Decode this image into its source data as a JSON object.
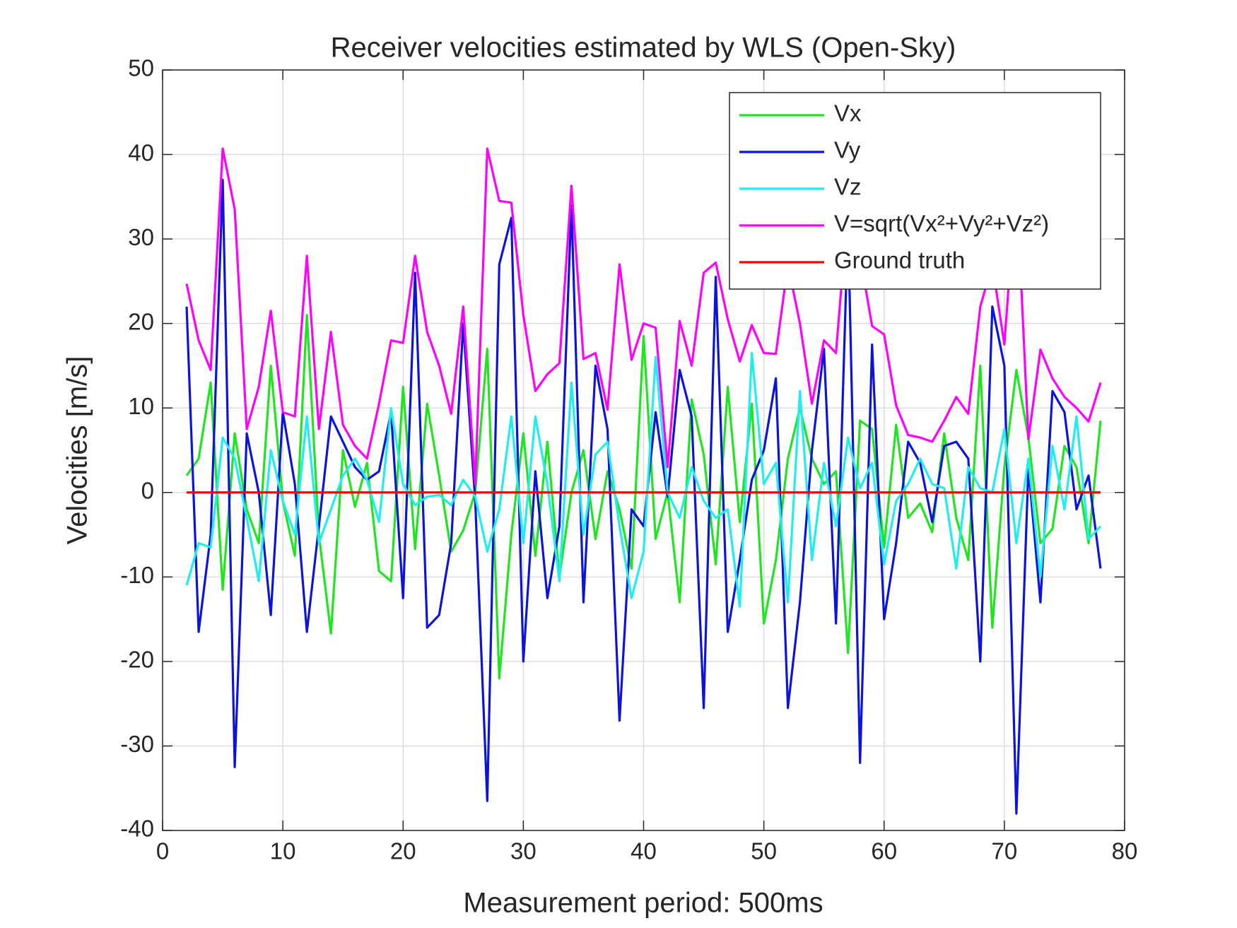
{
  "chart_data": {
    "type": "line",
    "title": "Receiver velocities estimated by WLS (Open-Sky)",
    "xlabel": "Measurement period: 500ms",
    "ylabel": "Velocities [m/s]",
    "x": [
      2,
      3,
      4,
      5,
      6,
      7,
      8,
      9,
      10,
      11,
      12,
      13,
      14,
      15,
      16,
      17,
      18,
      19,
      20,
      21,
      22,
      23,
      24,
      25,
      26,
      27,
      28,
      29,
      30,
      31,
      32,
      33,
      34,
      35,
      36,
      37,
      38,
      39,
      40,
      41,
      42,
      43,
      44,
      45,
      46,
      47,
      48,
      49,
      50,
      51,
      52,
      53,
      54,
      55,
      56,
      57,
      58,
      59,
      60,
      61,
      62,
      63,
      64,
      65,
      66,
      67,
      68,
      69,
      70,
      71,
      72,
      73,
      74,
      75,
      76,
      77,
      78
    ],
    "series": [
      {
        "name": "Vx",
        "color": "#1ee61e",
        "values": [
          2,
          4,
          13,
          -11.5,
          7,
          -2,
          -6,
          15,
          -1,
          -7.5,
          21,
          -5,
          -16.7,
          5,
          -1.7,
          3.5,
          -9.3,
          -10.5,
          12.5,
          -6.7,
          10.5,
          2,
          -7,
          -4.5,
          0,
          17,
          -22,
          -5,
          7,
          -7.5,
          6,
          -10,
          0,
          5,
          -5.5,
          2.5,
          -2,
          -9,
          18.5,
          -5.5,
          0,
          -13,
          11,
          4.5,
          -8.5,
          12.5,
          -3.5,
          10.5,
          -15.5,
          -8,
          4,
          10,
          4,
          1,
          2.5,
          -19,
          8.5,
          7.5,
          -6.5,
          8,
          -3,
          -1.3,
          -4.7,
          7,
          -3,
          -8,
          15,
          -16,
          3,
          14.5,
          6.5,
          -6,
          -4.3,
          5.5,
          3,
          -6,
          8.5
        ]
      },
      {
        "name": "Vy",
        "color": "#0a14dc",
        "values": [
          22,
          -16.5,
          -5,
          37,
          -32.5,
          7,
          0,
          -14.5,
          9.5,
          1,
          -16.5,
          -4,
          9,
          6,
          3,
          1.5,
          2.5,
          9.5,
          -12.5,
          26,
          -16,
          -14.5,
          -6,
          20,
          -1,
          -36.5,
          27,
          32.5,
          -20,
          2.5,
          -12.5,
          -4,
          34,
          -13,
          15,
          7.5,
          -27,
          -2,
          -4,
          9.5,
          -0.5,
          14.5,
          9,
          -25.5,
          25.5,
          -16.5,
          -8,
          1.5,
          5,
          13.5,
          -25.5,
          -13,
          5,
          17,
          -15.5,
          32,
          -32,
          17.5,
          -15,
          -6,
          6,
          3.5,
          -3.5,
          5.5,
          6,
          4,
          -20,
          22,
          15,
          -38,
          3,
          -13,
          12,
          9.5,
          -2,
          2,
          -9
        ]
      },
      {
        "name": "Vz",
        "color": "#1eeeee",
        "values": [
          -11,
          -6,
          -6.5,
          6.5,
          4,
          -3,
          -10.5,
          5,
          -1,
          -5,
          9,
          -6,
          -2,
          2,
          4,
          1.5,
          -3.5,
          10,
          1,
          -1.5,
          -0.5,
          -0.3,
          -1.5,
          1.5,
          -0.5,
          -7,
          -2,
          9,
          -6,
          9,
          1,
          -10.5,
          13,
          -5,
          4.5,
          6,
          -4,
          -12.5,
          -7,
          16,
          0,
          -3,
          3,
          -1,
          -3,
          -2,
          -13.5,
          16.5,
          1,
          3.5,
          -13,
          12,
          -8,
          3.5,
          -4,
          6.5,
          0.5,
          3.5,
          -8.5,
          -1,
          1,
          4,
          1,
          0.5,
          -9,
          3,
          0.5,
          0,
          7.5,
          -6,
          4,
          -10,
          5.5,
          -2,
          9,
          -5.5,
          -4
        ]
      },
      {
        "name": "V=sqrt(Vx²+Vy²+Vz²)",
        "color": "#ff00ff",
        "values": [
          24.7,
          18,
          14.5,
          40.7,
          33.5,
          7.5,
          12.5,
          21.5,
          9.5,
          9,
          28,
          7.5,
          19,
          8,
          5.5,
          4,
          10.5,
          18,
          17.7,
          28,
          19,
          15,
          9.3,
          22,
          1,
          40.7,
          34.5,
          34.3,
          21,
          12,
          14,
          15.3,
          36.3,
          15.8,
          16.5,
          9.8,
          27,
          15.7,
          20,
          19.5,
          3,
          20.3,
          15,
          26,
          27.2,
          20.5,
          15.5,
          19.8,
          16.5,
          16.4,
          27,
          20,
          10.5,
          18,
          16.5,
          34,
          28,
          19.7,
          18.7,
          10.3,
          6.8,
          6.5,
          6,
          8.5,
          11.3,
          9.3,
          22,
          27,
          17.5,
          37,
          6.3,
          16.9,
          13.5,
          11.3,
          10,
          8.4,
          13
        ]
      },
      {
        "name": "Ground truth",
        "color": "#ff0000",
        "values": [
          0,
          0,
          0,
          0,
          0,
          0,
          0,
          0,
          0,
          0,
          0,
          0,
          0,
          0,
          0,
          0,
          0,
          0,
          0,
          0,
          0,
          0,
          0,
          0,
          0,
          0,
          0,
          0,
          0,
          0,
          0,
          0,
          0,
          0,
          0,
          0,
          0,
          0,
          0,
          0,
          0,
          0,
          0,
          0,
          0,
          0,
          0,
          0,
          0,
          0,
          0,
          0,
          0,
          0,
          0,
          0,
          0,
          0,
          0,
          0,
          0,
          0,
          0,
          0,
          0,
          0,
          0,
          0,
          0,
          0,
          0,
          0,
          0,
          0,
          0,
          0,
          0
        ]
      }
    ],
    "xlim": [
      0,
      80
    ],
    "xticks": [
      0,
      10,
      20,
      30,
      40,
      50,
      60,
      70,
      80
    ],
    "ylim": [
      -40,
      50
    ],
    "yticks": [
      -40,
      -30,
      -20,
      -10,
      0,
      10,
      20,
      30,
      40,
      50
    ],
    "grid": true,
    "legend": "northeast"
  }
}
